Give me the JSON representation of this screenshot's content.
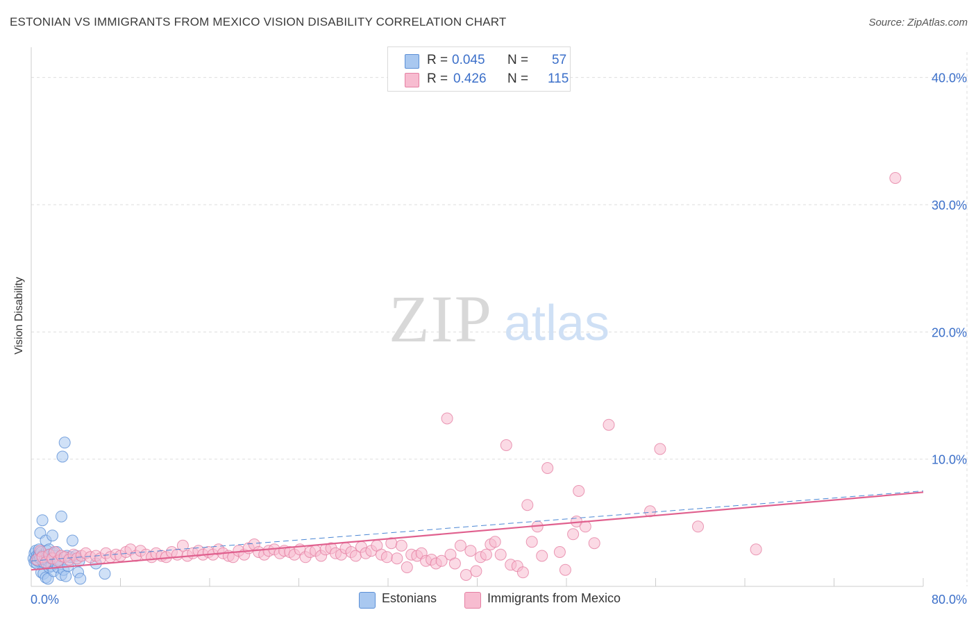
{
  "title": "ESTONIAN VS IMMIGRANTS FROM MEXICO VISION DISABILITY CORRELATION CHART",
  "source": "Source: ZipAtlas.com",
  "watermark": {
    "zip": "ZIP",
    "atlas": "atlas"
  },
  "legend_top": [
    {
      "r_label": "R =",
      "r_value": "0.045",
      "n_label": "N =",
      "n_value": "57"
    },
    {
      "r_label": "R =",
      "r_value": "0.426",
      "n_label": "N =",
      "n_value": "115"
    }
  ],
  "legend_bottom": [
    {
      "label": "Estonians"
    },
    {
      "label": "Immigrants from Mexico"
    }
  ],
  "colors": {
    "blue_fill": "#a9c8f0",
    "blue_stroke": "#5b8fd6",
    "blue_line": "#4a86d4",
    "pink_fill": "#f7bcd0",
    "pink_stroke": "#e57fa2",
    "pink_line": "#e0608e",
    "axis_text": "#3b6fc9",
    "grid": "#dddddd"
  },
  "chart_data": {
    "type": "scatter",
    "title": "ESTONIAN VS IMMIGRANTS FROM MEXICO VISION DISABILITY CORRELATION CHART",
    "xlabel": "",
    "ylabel": "Vision Disability",
    "xlim": [
      0,
      80
    ],
    "ylim": [
      0,
      42
    ],
    "x_tick_labels": [
      "0.0%",
      "80.0%"
    ],
    "y_ticks": [
      10,
      20,
      30,
      40
    ],
    "y_tick_labels": [
      "10.0%",
      "20.0%",
      "30.0%",
      "40.0%"
    ],
    "grid": true,
    "series": [
      {
        "name": "Estonians",
        "r": 0.045,
        "n": 57,
        "trend": {
          "x": [
            0,
            80
          ],
          "y": [
            2.0,
            7.5
          ],
          "style": "dashed"
        },
        "points": [
          [
            0.2,
            2.2
          ],
          [
            0.3,
            2.6
          ],
          [
            0.3,
            1.9
          ],
          [
            0.4,
            2.1
          ],
          [
            0.4,
            2.8
          ],
          [
            0.5,
            2.4
          ],
          [
            0.5,
            1.8
          ],
          [
            0.6,
            2.3
          ],
          [
            0.6,
            2.0
          ],
          [
            0.7,
            2.5
          ],
          [
            0.7,
            2.9
          ],
          [
            0.8,
            2.2
          ],
          [
            0.8,
            4.2
          ],
          [
            0.9,
            1.1
          ],
          [
            0.9,
            2.7
          ],
          [
            1.0,
            2.4
          ],
          [
            1.0,
            5.2
          ],
          [
            1.1,
            1.0
          ],
          [
            1.1,
            1.9
          ],
          [
            1.2,
            2.3
          ],
          [
            1.2,
            2.1
          ],
          [
            1.3,
            0.7
          ],
          [
            1.3,
            3.6
          ],
          [
            1.4,
            2.8
          ],
          [
            1.4,
            2.3
          ],
          [
            1.5,
            0.6
          ],
          [
            1.5,
            2.0
          ],
          [
            1.6,
            1.5
          ],
          [
            1.6,
            2.9
          ],
          [
            1.7,
            2.5
          ],
          [
            1.8,
            1.6
          ],
          [
            1.8,
            2.2
          ],
          [
            1.9,
            4.0
          ],
          [
            2.0,
            2.6
          ],
          [
            2.0,
            1.2
          ],
          [
            2.1,
            2.4
          ],
          [
            2.2,
            1.8
          ],
          [
            2.3,
            2.7
          ],
          [
            2.4,
            1.5
          ],
          [
            2.5,
            2.1
          ],
          [
            2.6,
            1.9
          ],
          [
            2.7,
            0.9
          ],
          [
            2.7,
            5.5
          ],
          [
            2.8,
            10.2
          ],
          [
            2.9,
            1.3
          ],
          [
            3.0,
            11.3
          ],
          [
            3.1,
            0.8
          ],
          [
            3.2,
            2.4
          ],
          [
            3.3,
            1.6
          ],
          [
            3.5,
            2.3
          ],
          [
            3.7,
            3.6
          ],
          [
            4.0,
            2.4
          ],
          [
            4.2,
            1.1
          ],
          [
            4.3,
            2.0
          ],
          [
            4.4,
            0.6
          ],
          [
            5.8,
            1.8
          ],
          [
            6.6,
            1.0
          ]
        ]
      },
      {
        "name": "Immigrants from Mexico",
        "r": 0.426,
        "n": 115,
        "trend": {
          "x": [
            0,
            80
          ],
          "y": [
            1.3,
            7.4
          ],
          "style": "solid"
        },
        "points": [
          [
            0.5,
            2.1
          ],
          [
            0.8,
            2.8
          ],
          [
            1.0,
            2.3
          ],
          [
            1.3,
            1.9
          ],
          [
            1.6,
            2.5
          ],
          [
            1.9,
            2.2
          ],
          [
            2.1,
            2.7
          ],
          [
            2.4,
            2.0
          ],
          [
            2.7,
            2.4
          ],
          [
            3.0,
            2.3
          ],
          [
            3.4,
            2.1
          ],
          [
            3.8,
            2.5
          ],
          [
            4.1,
            2.2
          ],
          [
            4.5,
            2.4
          ],
          [
            4.9,
            2.6
          ],
          [
            5.3,
            2.3
          ],
          [
            5.8,
            2.4
          ],
          [
            6.2,
            2.2
          ],
          [
            6.7,
            2.6
          ],
          [
            7.1,
            2.3
          ],
          [
            7.6,
            2.5
          ],
          [
            8.0,
            2.4
          ],
          [
            8.5,
            2.7
          ],
          [
            8.9,
            2.9
          ],
          [
            9.4,
            2.4
          ],
          [
            9.8,
            2.8
          ],
          [
            10.3,
            2.5
          ],
          [
            10.8,
            2.3
          ],
          [
            11.2,
            2.6
          ],
          [
            11.7,
            2.4
          ],
          [
            12.1,
            2.3
          ],
          [
            12.6,
            2.7
          ],
          [
            13.1,
            2.5
          ],
          [
            13.6,
            3.2
          ],
          [
            14.0,
            2.4
          ],
          [
            14.5,
            2.6
          ],
          [
            15.0,
            2.8
          ],
          [
            15.4,
            2.5
          ],
          [
            15.9,
            2.7
          ],
          [
            16.3,
            2.5
          ],
          [
            16.8,
            2.9
          ],
          [
            17.2,
            2.6
          ],
          [
            17.7,
            2.4
          ],
          [
            18.1,
            2.3
          ],
          [
            18.6,
            2.8
          ],
          [
            19.1,
            2.5
          ],
          [
            19.5,
            3.0
          ],
          [
            20.0,
            3.3
          ],
          [
            20.4,
            2.7
          ],
          [
            20.9,
            2.5
          ],
          [
            21.3,
            2.8
          ],
          [
            21.8,
            2.9
          ],
          [
            22.3,
            2.6
          ],
          [
            22.7,
            2.8
          ],
          [
            23.2,
            2.7
          ],
          [
            23.6,
            2.5
          ],
          [
            24.1,
            2.9
          ],
          [
            24.6,
            2.3
          ],
          [
            25.0,
            2.7
          ],
          [
            25.5,
            2.8
          ],
          [
            26.0,
            2.4
          ],
          [
            26.4,
            2.9
          ],
          [
            26.9,
            3.0
          ],
          [
            27.3,
            2.6
          ],
          [
            27.8,
            2.5
          ],
          [
            28.2,
            3.0
          ],
          [
            28.7,
            2.7
          ],
          [
            29.1,
            2.4
          ],
          [
            29.6,
            3.1
          ],
          [
            30.0,
            2.6
          ],
          [
            30.5,
            2.8
          ],
          [
            31.0,
            3.2
          ],
          [
            31.4,
            2.5
          ],
          [
            31.9,
            2.3
          ],
          [
            32.3,
            3.4
          ],
          [
            32.8,
            2.2
          ],
          [
            33.2,
            3.2
          ],
          [
            33.7,
            1.5
          ],
          [
            34.1,
            2.5
          ],
          [
            34.6,
            2.4
          ],
          [
            35.0,
            2.6
          ],
          [
            35.4,
            2.0
          ],
          [
            35.9,
            2.1
          ],
          [
            36.3,
            1.8
          ],
          [
            36.8,
            2.0
          ],
          [
            37.3,
            13.2
          ],
          [
            37.6,
            2.5
          ],
          [
            38.0,
            1.8
          ],
          [
            38.5,
            3.2
          ],
          [
            39.0,
            0.9
          ],
          [
            39.4,
            2.8
          ],
          [
            39.9,
            1.2
          ],
          [
            40.3,
            2.3
          ],
          [
            40.8,
            2.5
          ],
          [
            41.2,
            3.3
          ],
          [
            41.6,
            3.5
          ],
          [
            42.1,
            2.5
          ],
          [
            42.6,
            11.1
          ],
          [
            43.0,
            1.7
          ],
          [
            43.6,
            1.6
          ],
          [
            44.1,
            1.1
          ],
          [
            44.5,
            6.4
          ],
          [
            44.9,
            3.5
          ],
          [
            45.4,
            4.7
          ],
          [
            45.8,
            2.4
          ],
          [
            46.3,
            9.3
          ],
          [
            47.4,
            2.7
          ],
          [
            47.9,
            1.3
          ],
          [
            48.6,
            4.1
          ],
          [
            48.9,
            5.1
          ],
          [
            49.1,
            7.5
          ],
          [
            49.7,
            4.7
          ],
          [
            50.5,
            3.4
          ],
          [
            51.8,
            12.7
          ],
          [
            55.5,
            5.9
          ],
          [
            56.4,
            10.8
          ],
          [
            59.8,
            4.7
          ],
          [
            65.0,
            2.9
          ],
          [
            77.5,
            32.1
          ]
        ]
      }
    ]
  }
}
